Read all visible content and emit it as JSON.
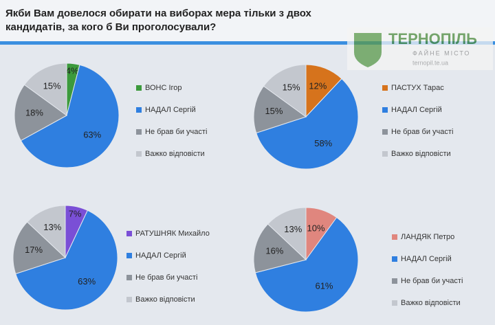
{
  "title": "Якби Вам довелося обирати на виборах мера тільки з двох кандидатів, за кого б Ви проголосували?",
  "watermark": {
    "name": "ТЕРНОПІЛЬ",
    "slogan": "ФАЙНЕ МІСТО",
    "site": "ternopil.te.ua"
  },
  "chart_data": [
    {
      "type": "pie",
      "categories": [
        "ВОНС Ігор",
        "НАДАЛ Сергій",
        "Не брав би участі",
        "Важко відповісти"
      ],
      "values": [
        4,
        63,
        18,
        15
      ],
      "value_labels": [
        "4%",
        "63%",
        "18%",
        "15%"
      ],
      "colors": [
        "#3c9a3c",
        "#2f7fe0",
        "#8d939b",
        "#c3c7ce"
      ]
    },
    {
      "type": "pie",
      "categories": [
        "ПАСТУХ Тарас",
        "НАДАЛ Сергій",
        "Не брав би участі",
        "Важко відповісти"
      ],
      "values": [
        12,
        58,
        15,
        15
      ],
      "value_labels": [
        "12%",
        "58%",
        "15%",
        "15%"
      ],
      "colors": [
        "#d6731c",
        "#2f7fe0",
        "#8d939b",
        "#c3c7ce"
      ]
    },
    {
      "type": "pie",
      "categories": [
        "РАТУШНЯК Михайло",
        "НАДАЛ Сергій",
        "Не брав би участі",
        "Важко відповісти"
      ],
      "values": [
        7,
        63,
        17,
        13
      ],
      "value_labels": [
        "7%",
        "63%",
        "17%",
        "13%"
      ],
      "colors": [
        "#7a4fd6",
        "#2f7fe0",
        "#8d939b",
        "#c3c7ce"
      ]
    },
    {
      "type": "pie",
      "categories": [
        "ЛАНДЯК Петро",
        "НАДАЛ Сергій",
        "Не брав би участі",
        "Важко відповісти"
      ],
      "values": [
        10,
        61,
        16,
        13
      ],
      "value_labels": [
        "10%",
        "61%",
        "16%",
        "13%"
      ],
      "colors": [
        "#e0867e",
        "#2f7fe0",
        "#8d939b",
        "#c3c7ce"
      ]
    }
  ]
}
